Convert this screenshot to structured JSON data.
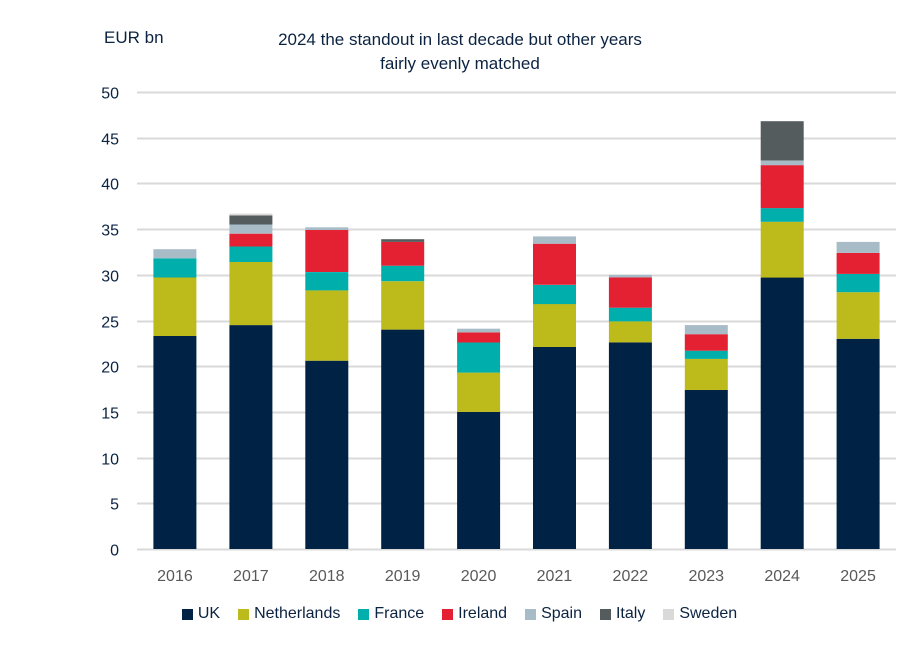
{
  "chart_data": {
    "type": "bar",
    "stacked": true,
    "title": "2024 the standout in last decade but other years fairly evenly matched",
    "title_lines": [
      "2024 the standout in last decade but other years",
      "fairly evenly matched"
    ],
    "ylabel": "EUR bn",
    "xlabel": "",
    "ylim": [
      0,
      50
    ],
    "yticks": [
      0,
      5,
      10,
      15,
      20,
      25,
      30,
      35,
      40,
      45,
      50
    ],
    "grid": true,
    "legend_position": "bottom",
    "categories": [
      "2016",
      "2017",
      "2018",
      "2019",
      "2020",
      "2021",
      "2022",
      "2023",
      "2024",
      "2025"
    ],
    "series": [
      {
        "name": "UK",
        "color": "#002244",
        "values": [
          23.3,
          24.5,
          20.6,
          24.0,
          15.0,
          22.1,
          22.6,
          17.4,
          29.7,
          23.0
        ]
      },
      {
        "name": "Netherlands",
        "color": "#bdba1b",
        "values": [
          6.4,
          6.9,
          7.7,
          5.3,
          4.3,
          4.7,
          2.3,
          3.4,
          6.1,
          5.1
        ]
      },
      {
        "name": "France",
        "color": "#00aeac",
        "values": [
          2.1,
          1.7,
          2.0,
          1.7,
          3.3,
          2.1,
          1.5,
          0.9,
          1.5,
          2.0
        ]
      },
      {
        "name": "Ireland",
        "color": "#e32132",
        "values": [
          0.0,
          1.4,
          4.6,
          2.6,
          1.1,
          4.5,
          3.3,
          1.8,
          4.7,
          2.3
        ]
      },
      {
        "name": "Spain",
        "color": "#a8bcc8",
        "values": [
          1.0,
          1.0,
          0.3,
          0.0,
          0.4,
          0.8,
          0.3,
          1.0,
          0.5,
          1.2
        ]
      },
      {
        "name": "Italy",
        "color": "#555c5e",
        "values": [
          0.0,
          1.0,
          0.0,
          0.3,
          0.0,
          0.0,
          0.0,
          0.0,
          4.3,
          0.0
        ]
      },
      {
        "name": "Sweden",
        "color": "#d9d9d9",
        "values": [
          0.0,
          0.2,
          0.0,
          0.0,
          0.0,
          0.0,
          0.0,
          0.0,
          0.0,
          0.0
        ]
      }
    ]
  },
  "colors": {
    "text": "#0b2341",
    "tick_text": "#595959",
    "gridline": "#d9d9d9"
  }
}
